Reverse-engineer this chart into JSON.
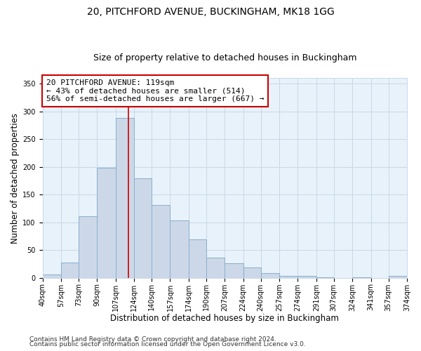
{
  "title": "20, PITCHFORD AVENUE, BUCKINGHAM, MK18 1GG",
  "subtitle": "Size of property relative to detached houses in Buckingham",
  "xlabel": "Distribution of detached houses by size in Buckingham",
  "ylabel": "Number of detached properties",
  "bar_color": "#ccd8e8",
  "bar_edge_color": "#89aece",
  "grid_color": "#c8d8e8",
  "background_color": "#e8f2fa",
  "property_line_x": 119,
  "property_line_color": "#cc0000",
  "annotation_box_text": "20 PITCHFORD AVENUE: 119sqm\n← 43% of detached houses are smaller (514)\n56% of semi-detached houses are larger (667) →",
  "annotation_box_edge_color": "#cc0000",
  "bin_edges": [
    40,
    57,
    73,
    90,
    107,
    124,
    140,
    157,
    174,
    190,
    207,
    224,
    240,
    257,
    274,
    291,
    307,
    324,
    341,
    357,
    374
  ],
  "bar_heights": [
    6,
    28,
    111,
    198,
    289,
    180,
    131,
    103,
    69,
    36,
    26,
    19,
    8,
    4,
    3,
    1,
    0,
    1,
    0,
    3
  ],
  "xlim": [
    40,
    374
  ],
  "ylim": [
    0,
    360
  ],
  "yticks": [
    0,
    50,
    100,
    150,
    200,
    250,
    300,
    350
  ],
  "xtick_labels": [
    "40sqm",
    "57sqm",
    "73sqm",
    "90sqm",
    "107sqm",
    "124sqm",
    "140sqm",
    "157sqm",
    "174sqm",
    "190sqm",
    "207sqm",
    "224sqm",
    "240sqm",
    "257sqm",
    "274sqm",
    "291sqm",
    "307sqm",
    "324sqm",
    "341sqm",
    "357sqm",
    "374sqm"
  ],
  "footnote1": "Contains HM Land Registry data © Crown copyright and database right 2024.",
  "footnote2": "Contains public sector information licensed under the Open Government Licence v3.0.",
  "title_fontsize": 10,
  "subtitle_fontsize": 9,
  "axis_label_fontsize": 8.5,
  "tick_fontsize": 7,
  "annotation_fontsize": 8,
  "footnote_fontsize": 6.5
}
